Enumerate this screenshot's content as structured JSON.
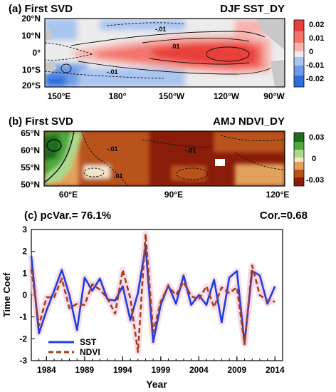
{
  "panel_a": {
    "title_left": "(a) First SVD",
    "title_right": "DJF SST_DY",
    "y_ticks": [
      "20°N",
      "10°N",
      "0°",
      "10°S",
      "20°S"
    ],
    "x_ticks": [
      "150°E",
      "180°",
      "150°W",
      "120°W",
      "90°W"
    ],
    "colorbar_ticks": [
      "0.02",
      "0.01",
      "0",
      "-0.01",
      "-0.02"
    ],
    "contour_labels": [
      "-.01",
      ".01",
      "-.01"
    ],
    "colors": {
      "pos_strong": "#e8403a",
      "pos_mid": "#f2756c",
      "pos_light": "#f7b3ad",
      "neutral": "#ececec",
      "neg_light": "#a9c4ef",
      "neg_mid": "#6e9be6",
      "neg_strong": "#2f6fdc",
      "land": "#c8c8c8"
    }
  },
  "panel_b": {
    "title_left": "(b) First SVD",
    "title_right": "AMJ NDVI_DY",
    "y_ticks": [
      "65°N",
      "60°N",
      "55°N",
      "50°N"
    ],
    "x_ticks": [
      "60°E",
      "90°E",
      "120°E"
    ],
    "colorbar_ticks": [
      "0.03",
      "0",
      "-0.03"
    ],
    "contour_labels": [
      "-.01",
      "-.01",
      ".01"
    ],
    "colors": {
      "green_dark": "#1e6e1e",
      "green_mid": "#4ea83a",
      "green_light": "#a9d98b",
      "neutral": "#f3e7c9",
      "brown_light": "#e2a15c",
      "brown_mid": "#b8521c",
      "brown_dark": "#8a1c0a"
    }
  },
  "panel_c": {
    "title_left": "(c) pcVar.= 76.1%",
    "title_right": "Cor.=0.68",
    "ylabel": "Time Coef",
    "xlabel": "Year",
    "y_ticks": [
      "3",
      "2",
      "1",
      "0",
      "-1",
      "-2",
      "-3"
    ],
    "x_ticks": [
      "1984",
      "1989",
      "1994",
      "1999",
      "2004",
      "2009",
      "2014"
    ],
    "legend": [
      "SST",
      "NDVI"
    ]
  },
  "chart_data": {
    "type": "line",
    "title": "(c) pcVar.= 76.1%",
    "annotation": "Cor.=0.68",
    "xlabel": "Year",
    "ylabel": "Time Coef",
    "x": [
      1982,
      1983,
      1984,
      1985,
      1986,
      1987,
      1988,
      1989,
      1990,
      1991,
      1992,
      1993,
      1994,
      1995,
      1996,
      1997,
      1998,
      1999,
      2000,
      2001,
      2002,
      2003,
      2004,
      2005,
      2006,
      2007,
      2008,
      2009,
      2010,
      2011,
      2012,
      2013,
      2014,
      2015
    ],
    "xlim": [
      1982,
      2015
    ],
    "ylim": [
      -3,
      3
    ],
    "series": [
      {
        "name": "SST",
        "color": "#1f3fd9",
        "style": "solid",
        "values": [
          1.8,
          -1.75,
          -0.7,
          0.2,
          1.15,
          0.0,
          -1.6,
          0.8,
          0.2,
          0.75,
          -0.2,
          -0.25,
          0.4,
          -1.15,
          0.1,
          2.2,
          -2.15,
          -0.45,
          0.45,
          -0.4,
          0.9,
          -0.45,
          0.0,
          -0.45,
          0.7,
          -1.25,
          0.8,
          1.1,
          -2.2,
          1.1,
          0.9,
          -0.4,
          0.4,
          null
        ]
      },
      {
        "name": "NDVI",
        "color": "#a0401e",
        "style": "dashed",
        "values": [
          1.2,
          -1.4,
          -0.1,
          -0.1,
          0.75,
          -0.6,
          -0.4,
          -0.45,
          0.5,
          0.25,
          -0.15,
          -0.85,
          1.15,
          -0.15,
          -2.6,
          2.8,
          -1.7,
          -0.3,
          0.4,
          0.0,
          0.6,
          -0.05,
          -0.2,
          0.4,
          -0.55,
          0.35,
          0.1,
          0.35,
          -2.25,
          1.35,
          0.0,
          -0.25,
          -0.3,
          null
        ]
      }
    ],
    "grid": false,
    "legend_position": "bottom-left"
  }
}
